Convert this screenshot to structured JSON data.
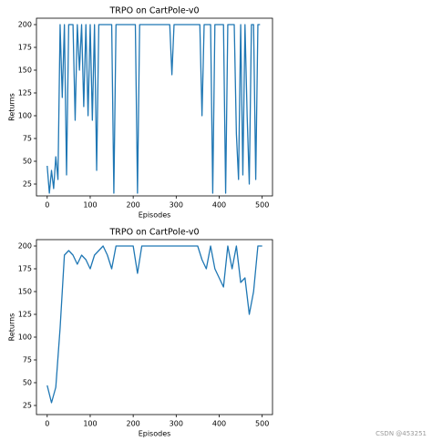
{
  "chart_data": [
    {
      "type": "line",
      "title": "TRPO on CartPole-v0",
      "x_label": "Episodes",
      "y_label": "Returns",
      "color": "#1f77b4",
      "x": [
        0,
        5,
        10,
        15,
        20,
        25,
        30,
        35,
        40,
        45,
        50,
        55,
        60,
        65,
        70,
        75,
        80,
        85,
        90,
        95,
        100,
        105,
        110,
        115,
        120,
        125,
        130,
        135,
        140,
        145,
        150,
        155,
        160,
        165,
        170,
        175,
        180,
        185,
        190,
        195,
        200,
        205,
        210,
        215,
        220,
        225,
        230,
        235,
        240,
        245,
        250,
        255,
        260,
        265,
        270,
        275,
        280,
        285,
        290,
        295,
        300,
        305,
        310,
        315,
        320,
        325,
        330,
        335,
        340,
        345,
        350,
        355,
        360,
        365,
        370,
        375,
        380,
        385,
        390,
        395,
        400,
        405,
        410,
        415,
        420,
        425,
        430,
        435,
        440,
        445,
        450,
        455,
        460,
        465,
        470,
        475,
        480,
        485,
        490,
        495
      ],
      "values": [
        45,
        15,
        40,
        20,
        55,
        30,
        200,
        120,
        200,
        35,
        200,
        200,
        200,
        95,
        200,
        150,
        200,
        110,
        200,
        100,
        200,
        95,
        200,
        40,
        200,
        200,
        200,
        200,
        200,
        200,
        200,
        15,
        200,
        200,
        200,
        200,
        200,
        200,
        200,
        200,
        200,
        200,
        15,
        200,
        200,
        200,
        200,
        200,
        200,
        200,
        200,
        200,
        200,
        200,
        200,
        200,
        200,
        200,
        145,
        200,
        200,
        200,
        200,
        200,
        200,
        200,
        200,
        200,
        200,
        200,
        200,
        200,
        100,
        200,
        200,
        200,
        200,
        15,
        200,
        200,
        200,
        200,
        200,
        15,
        200,
        200,
        200,
        200,
        80,
        30,
        200,
        35,
        200,
        100,
        25,
        200,
        200,
        30,
        200,
        200
      ],
      "xlim": [
        -25,
        524
      ],
      "ylim": [
        12,
        207
      ],
      "xticks": [
        0,
        100,
        200,
        300,
        400,
        500
      ],
      "yticks": [
        25,
        50,
        75,
        100,
        125,
        150,
        175,
        200
      ]
    },
    {
      "type": "line",
      "title": "TRPO on CartPole-v0",
      "x_label": "Episodes",
      "y_label": "Returns",
      "color": "#1f77b4",
      "x": [
        0,
        10,
        20,
        30,
        40,
        50,
        60,
        70,
        80,
        90,
        100,
        110,
        120,
        130,
        140,
        150,
        160,
        170,
        180,
        190,
        200,
        210,
        220,
        230,
        240,
        250,
        260,
        270,
        280,
        290,
        300,
        310,
        320,
        330,
        340,
        350,
        360,
        370,
        380,
        390,
        400,
        410,
        420,
        430,
        440,
        450,
        460,
        470,
        480,
        490,
        500
      ],
      "values": [
        47,
        28,
        45,
        110,
        190,
        195,
        190,
        180,
        190,
        185,
        175,
        190,
        195,
        200,
        190,
        175,
        200,
        200,
        200,
        200,
        200,
        170,
        200,
        200,
        200,
        200,
        200,
        200,
        200,
        200,
        200,
        200,
        200,
        200,
        200,
        200,
        185,
        175,
        200,
        175,
        165,
        155,
        200,
        175,
        200,
        160,
        165,
        125,
        150,
        200,
        200
      ],
      "xlim": [
        -25,
        524
      ],
      "ylim": [
        15,
        207
      ],
      "xticks": [
        0,
        100,
        200,
        300,
        400,
        500
      ],
      "yticks": [
        25,
        50,
        75,
        100,
        125,
        150,
        175,
        200
      ]
    }
  ],
  "watermark": "CSDN @453251"
}
